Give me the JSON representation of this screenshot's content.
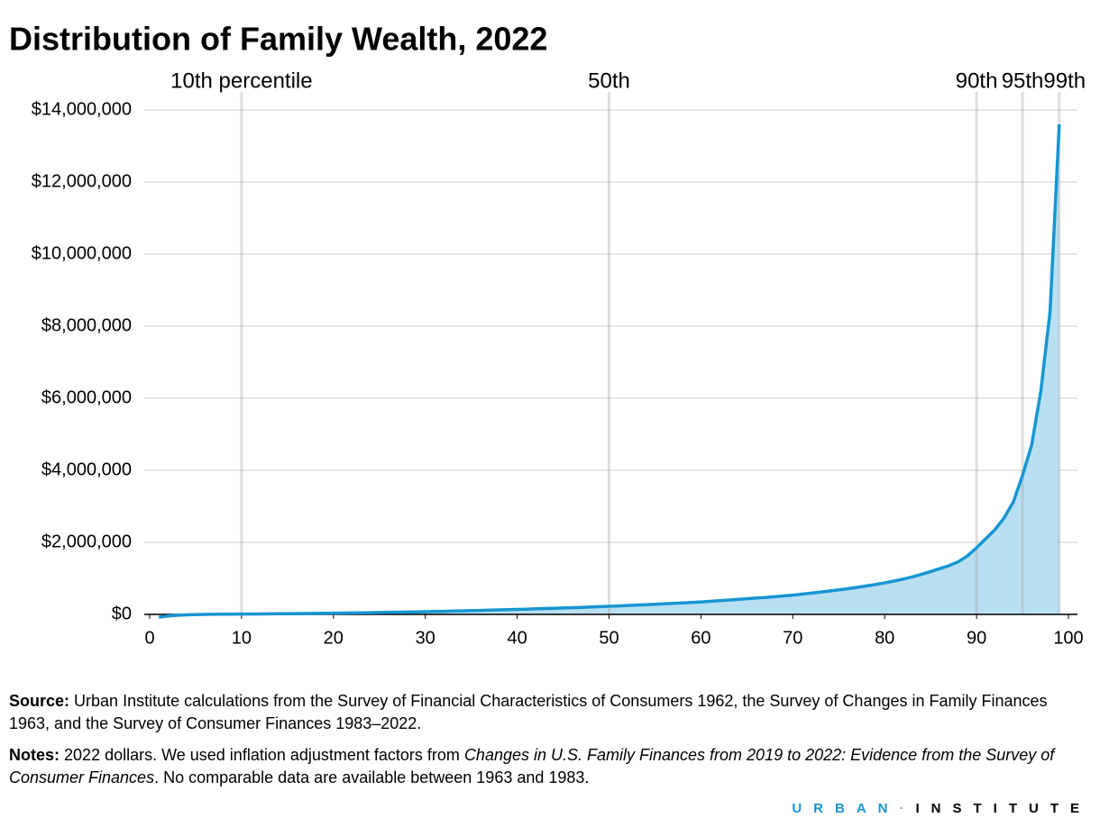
{
  "chart_data": {
    "type": "area",
    "title": "Distribution of Family Wealth, 2022",
    "color": "#1696d2",
    "fill": "#b9dff2",
    "grid": true,
    "x": [
      1,
      2,
      3,
      4,
      5,
      6,
      7,
      8,
      9,
      10,
      11,
      12,
      13,
      14,
      15,
      16,
      17,
      18,
      19,
      20,
      21,
      22,
      23,
      24,
      25,
      26,
      27,
      28,
      29,
      30,
      31,
      32,
      33,
      34,
      35,
      36,
      37,
      38,
      39,
      40,
      41,
      42,
      43,
      44,
      45,
      46,
      47,
      48,
      49,
      50,
      51,
      52,
      53,
      54,
      55,
      56,
      57,
      58,
      59,
      60,
      61,
      62,
      63,
      64,
      65,
      66,
      67,
      68,
      69,
      70,
      71,
      72,
      73,
      74,
      75,
      76,
      77,
      78,
      79,
      80,
      81,
      82,
      83,
      84,
      85,
      86,
      87,
      88,
      89,
      90,
      91,
      92,
      93,
      94,
      95,
      96,
      97,
      98,
      99
    ],
    "values": [
      -80000,
      -45000,
      -25000,
      -12000,
      -5000,
      0,
      3000,
      5000,
      7000,
      9000,
      11000,
      13000,
      15000,
      17000,
      19000,
      22000,
      25000,
      28000,
      31000,
      34000,
      37000,
      40000,
      44000,
      48000,
      52000,
      56000,
      60000,
      65000,
      70000,
      75000,
      80000,
      86000,
      92000,
      98000,
      104000,
      110000,
      117000,
      124000,
      131000,
      138000,
      146000,
      154000,
      162000,
      170000,
      178000,
      187000,
      196000,
      205000,
      215000,
      225000,
      236000,
      247000,
      258000,
      269000,
      280000,
      292000,
      304000,
      317000,
      330000,
      345000,
      362000,
      380000,
      398000,
      416000,
      434000,
      452000,
      470000,
      490000,
      512000,
      536000,
      562000,
      590000,
      620000,
      650000,
      680000,
      712000,
      750000,
      790000,
      830000,
      875000,
      925000,
      980000,
      1040000,
      1110000,
      1190000,
      1270000,
      1350000,
      1460000,
      1620000,
      1850000,
      2100000,
      2350000,
      2680000,
      3120000,
      3850000,
      4700000,
      6200000,
      8400000,
      13600000
    ],
    "xlim": [
      0,
      100
    ],
    "xticks": [
      0,
      10,
      20,
      30,
      40,
      50,
      60,
      70,
      80,
      90,
      100
    ],
    "ylim": [
      0,
      14000000
    ],
    "yticks": [
      {
        "value": 0,
        "label": "$0"
      },
      {
        "value": 2000000,
        "label": "$2,000,000"
      },
      {
        "value": 4000000,
        "label": "$4,000,000"
      },
      {
        "value": 6000000,
        "label": "$6,000,000"
      },
      {
        "value": 8000000,
        "label": "$8,000,000"
      },
      {
        "value": 10000000,
        "label": "$10,000,000"
      },
      {
        "value": 12000000,
        "label": "$12,000,000"
      },
      {
        "value": 14000000,
        "label": "$14,000,000"
      }
    ],
    "annotations": [
      {
        "x": 10,
        "label": "10th percentile"
      },
      {
        "x": 50,
        "label": "50th"
      },
      {
        "x": 90,
        "label": "90th"
      },
      {
        "x": 95,
        "label": "95th"
      },
      {
        "x": 99,
        "label": "99th"
      }
    ]
  },
  "source": {
    "label": "Source:",
    "text": "Urban Institute calculations from the Survey of Financial Characteristics of Consumers 1962, the Survey of Changes in Family Finances 1963, and the Survey of Consumer Finances 1983–2022."
  },
  "notes": {
    "label": "Notes:",
    "text1": "2022 dollars. We used inflation adjustment factors from",
    "italic1": "Changes in U.S. Family Finances from 2019 to 2022: Evidence from the Survey of Consumer Finances",
    "text2": ". No comparable data are available between 1963 and 1983."
  },
  "logo": [
    "URBAN",
    "INSTITUTE"
  ]
}
